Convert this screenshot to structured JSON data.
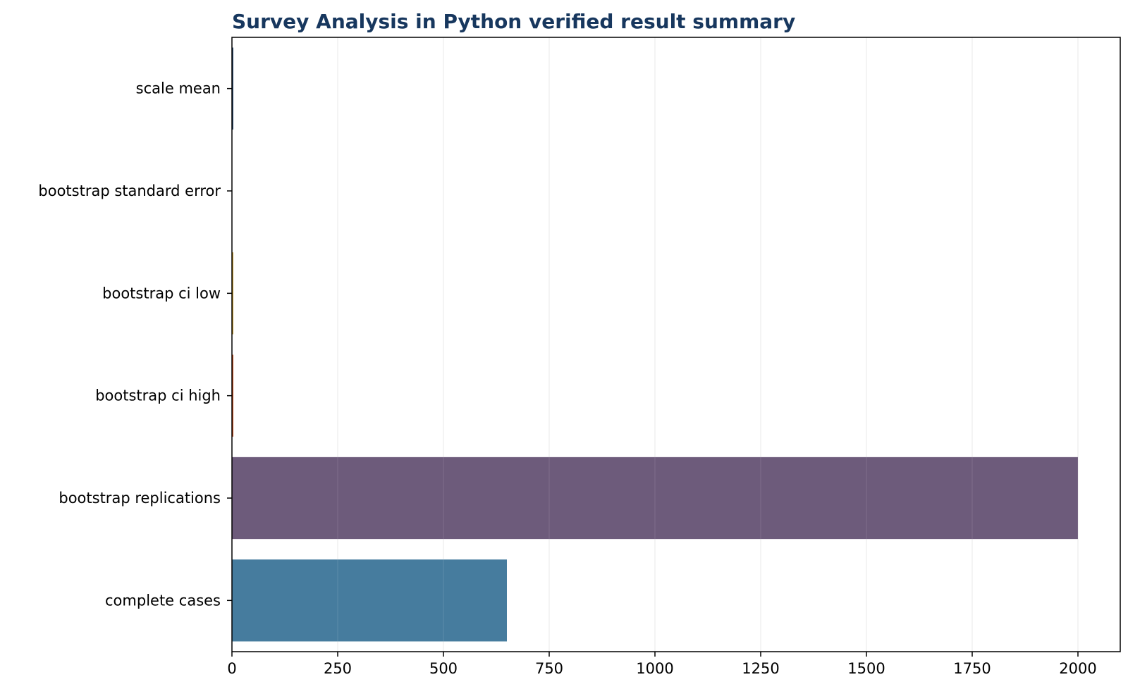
{
  "colors": {
    "title": "#17375e",
    "grid": "#e6e6e6",
    "axis": "#000000",
    "background": "#ffffff"
  },
  "chart_data": {
    "type": "bar",
    "orientation": "horizontal",
    "title": "Survey Analysis in Python verified result summary",
    "xlabel": "",
    "ylabel": "",
    "categories": [
      "scale mean",
      "bootstrap standard error",
      "bootstrap ci low",
      "bootstrap ci high",
      "bootstrap replications",
      "complete cases"
    ],
    "values": [
      3.1,
      0.04,
      3.0,
      3.2,
      2000,
      650
    ],
    "bar_colors": [
      "#17375e",
      "#2c7a7b",
      "#b8860b",
      "#c2410c",
      "#6d5b7b",
      "#467c9e"
    ],
    "xlim": [
      0,
      2100
    ],
    "xticks": [
      0,
      250,
      500,
      750,
      1000,
      1250,
      1500,
      1750,
      2000
    ],
    "grid": "x",
    "legend": "none"
  }
}
